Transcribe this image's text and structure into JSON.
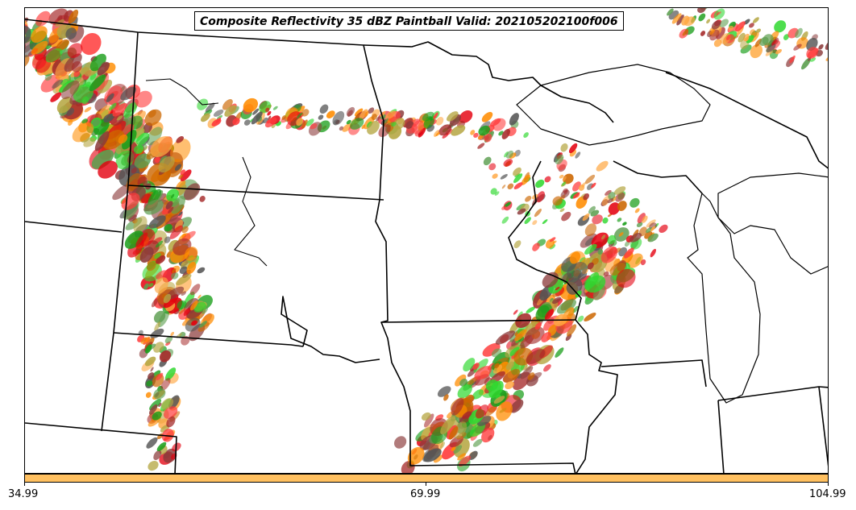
{
  "title": "Composite Reflectivity 35 dBZ Paintball Valid: 202105202100f006",
  "colors": {
    "background": "#ffffff",
    "boundary": "#000000",
    "colorbar": "#ffc060",
    "paint": [
      "#ff3b3b",
      "#e4000f",
      "#2fd82f",
      "#1a9e1a",
      "#ff8c00",
      "#ffa640",
      "#8b3a3a",
      "#a52a2a",
      "#5c9e4f",
      "#b5a642",
      "#555555",
      "#cc6600"
    ]
  },
  "colorbar": {
    "ticks": [
      "34.99",
      "69.99",
      "104.99"
    ]
  },
  "icons": {
    "map": "midwest-us-state-boundaries",
    "paint": "reflectivity-paintball-ellipses"
  }
}
